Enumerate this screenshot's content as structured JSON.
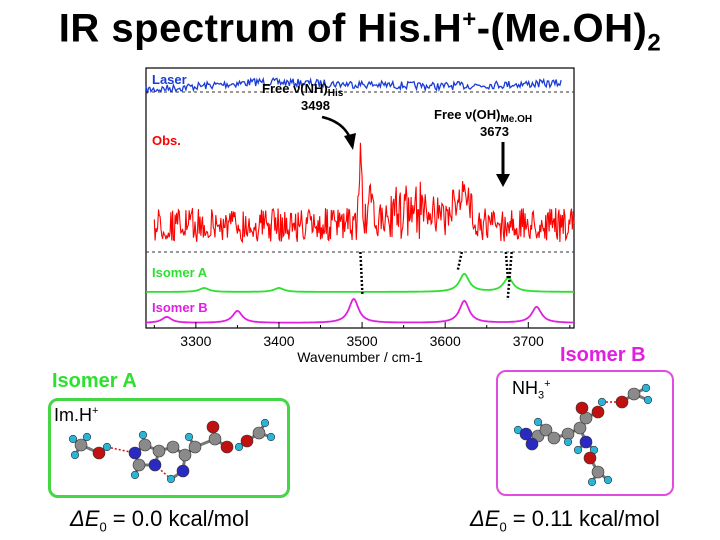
{
  "title": {
    "main": "IR spectrum of His.H",
    "charge": "+",
    "middle": "-(Me.OH)",
    "count": "2"
  },
  "colors": {
    "laser": "#1a3cd6",
    "obs": "#ff0000",
    "isomer_a": "#2ee02e",
    "isomer_b": "#e020e0",
    "box_a": "#44d644",
    "box_b": "#e04ce0",
    "atom_carbon": "#8a8a8a",
    "atom_hydrogen": "#2ab4d8",
    "atom_nitrogen": "#2a2ac0",
    "atom_oxygen": "#c01010"
  },
  "chart_data": {
    "type": "line",
    "xlabel": "Wavenumber / cm-1",
    "ylabel": "",
    "xlim": [
      3240,
      3755
    ],
    "xticks": [
      "3300",
      "3400",
      "3500",
      "3600",
      "3700"
    ],
    "xtick_values": [
      3300,
      3400,
      3500,
      3600,
      3700
    ],
    "series": [
      {
        "name": "Laser",
        "values_note": ""
      },
      {
        "name": "Obs."
      },
      {
        "name": "Isomer A",
        "peaks": [
          3310,
          3400,
          3623,
          3676
        ]
      },
      {
        "name": "Isomer B",
        "peaks": [
          3265,
          3350,
          3490,
          3623,
          3710
        ]
      }
    ],
    "annotations": [
      {
        "label": "Free ν(NH)",
        "sub": "His",
        "value": "3498",
        "x": 3498
      },
      {
        "label": "Free ν(OH)",
        "sub": "Me.OH",
        "value": "3673",
        "x": 3673
      }
    ]
  },
  "isomer_a": {
    "title": "Isomer A",
    "label": "Im.H",
    "charge": "+",
    "energy_prefix": "ΔE",
    "energy_sub": "0",
    "energy_value": " = 0.0 kcal/mol"
  },
  "isomer_b": {
    "title": "Isomer B",
    "label": "NH",
    "label_sub": "3",
    "charge": "+",
    "energy_prefix": "ΔE",
    "energy_sub": "0",
    "energy_value": " = 0.11 kcal/mol"
  }
}
